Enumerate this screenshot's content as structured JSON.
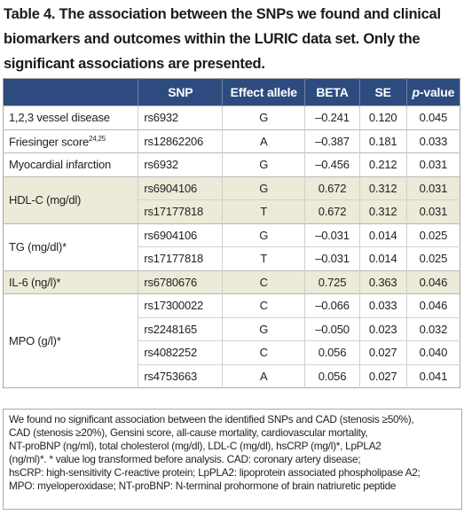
{
  "title": "Table 4. The association between the SNPs we found and clinical biomarkers and outcomes within the LURIC data set. Only the significant associations are presented.",
  "table": {
    "columns": [
      "SNP",
      "Effect allele",
      "BETA",
      "SE",
      {
        "italic": "p",
        "rest": "-value"
      }
    ],
    "groups": [
      {
        "trait": "1,2,3 vessel disease",
        "rows": [
          [
            "rs6932",
            "G",
            "–0.241",
            "0.120",
            "0.045"
          ]
        ]
      },
      {
        "trait": "Friesinger score",
        "trait_sup": "24,25",
        "rows": [
          [
            "rs12862206",
            "A",
            "–0.387",
            "0.181",
            "0.033"
          ]
        ]
      },
      {
        "trait": "Myocardial infarction",
        "rows": [
          [
            "rs6932",
            "G",
            "–0.456",
            "0.212",
            "0.031"
          ]
        ]
      },
      {
        "trait": "HDL-C (mg/dl)",
        "rows": [
          [
            "rs6904106",
            "G",
            "0.672",
            "0.312",
            "0.031"
          ],
          [
            "rs17177818",
            "T",
            "0.672",
            "0.312",
            "0.031"
          ]
        ]
      },
      {
        "trait": "TG (mg/dl)*",
        "rows": [
          [
            "rs6904106",
            "G",
            "–0.031",
            "0.014",
            "0.025"
          ],
          [
            "rs17177818",
            "T",
            "–0.031",
            "0.014",
            "0.025"
          ]
        ]
      },
      {
        "trait": "IL-6 (ng/l)*",
        "rows": [
          [
            "rs6780676",
            "C",
            "0.725",
            "0.363",
            "0.046"
          ]
        ]
      },
      {
        "trait": "MPO (g/l)*",
        "rows": [
          [
            "rs17300022",
            "C",
            "–0.066",
            "0.033",
            "0.046"
          ],
          [
            "rs2248165",
            "G",
            "–0.050",
            "0.023",
            "0.032"
          ],
          [
            "rs4082252",
            "C",
            "0.056",
            "0.027",
            "0.040"
          ],
          [
            "rs4753663",
            "A",
            "0.056",
            "0.027",
            "0.041"
          ]
        ]
      }
    ]
  },
  "footnote": [
    "We found no significant association between the identified SNPs and CAD (stenosis ≥50%),",
    "CAD (stenosis ≥20%), Gensini score, all-cause mortality, cardiovascular mortality,",
    "NT-proBNP (ng/ml), total cholesterol (mg/dl), LDL-C (mg/dl), hsCRP (mg/l)*, LpPLA2",
    "(ng/ml)*. * value log transformed before analysis. CAD: coronary artery disease;",
    "hsCRP: high-sensitivity C-reactive protein; LpPLA2: lipoprotein associated phospholipase A2;",
    "MPO: myeloperoxidase; NT-proBNP: N-terminal prohormone of brain natriuretic peptide"
  ]
}
